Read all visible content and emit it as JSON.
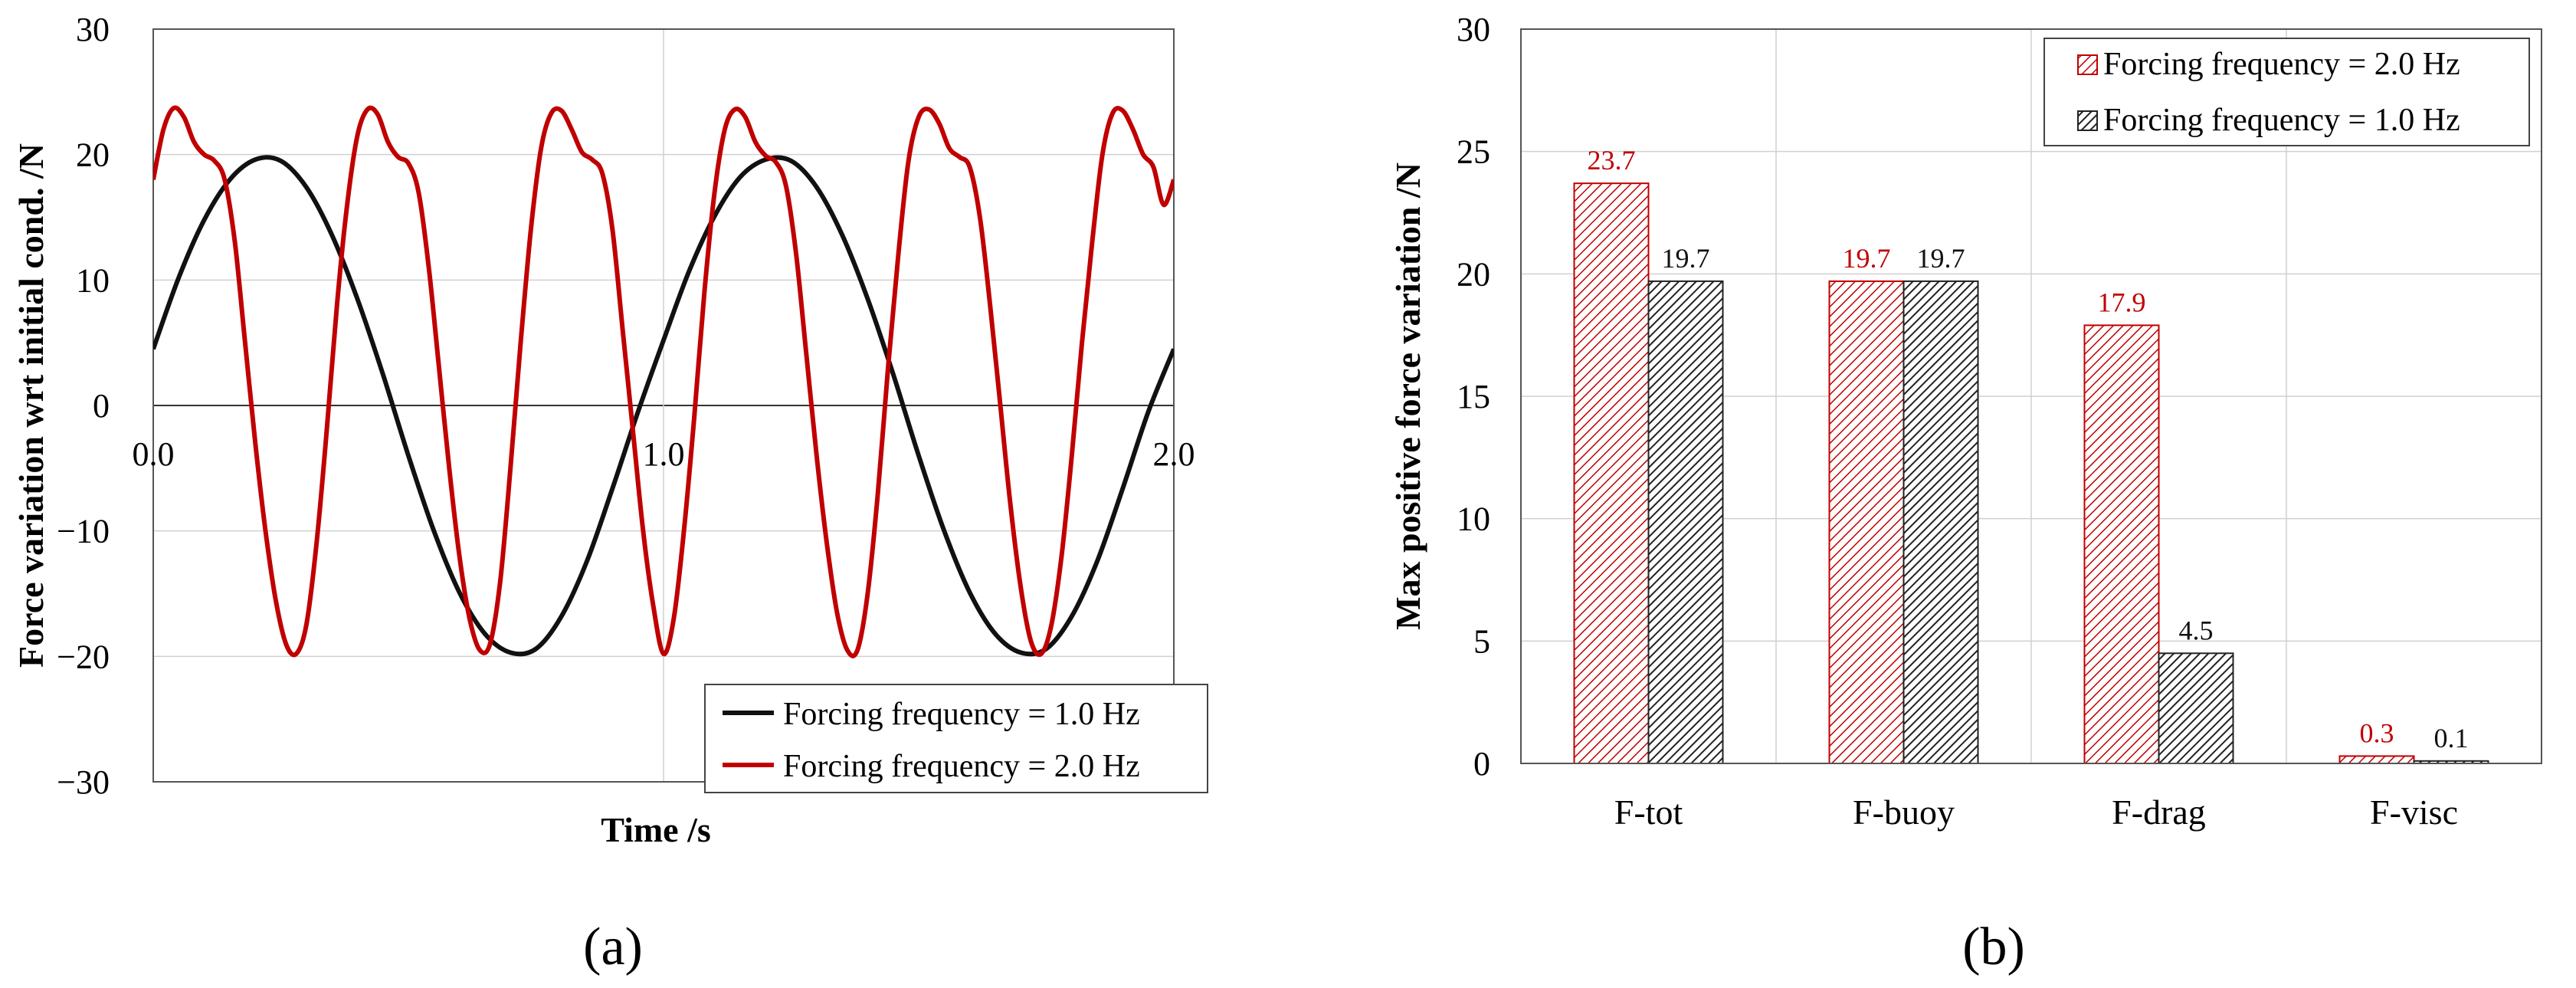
{
  "colors": {
    "series_1hz": "#111111",
    "series_2hz": "#C00000",
    "grid": "#d0d0d0",
    "axis": "#000000"
  },
  "chart_data": [
    {
      "panel": "(a)",
      "type": "line",
      "title": "",
      "xlabel": "Time /s",
      "ylabel": "Force variation wrt initial cond. /N",
      "xlim": [
        0,
        2
      ],
      "ylim": [
        -30,
        30
      ],
      "x_ticks": [
        "0.0",
        "1.0",
        "2.0"
      ],
      "y_ticks": [
        "30",
        "20",
        "10",
        "0",
        "−10",
        "−20",
        "−30"
      ],
      "legend_position": "bottom-right",
      "series": [
        {
          "name": "Forcing frequency = 1.0 Hz",
          "color": "#111111",
          "x": [
            0.0,
            0.05,
            0.1,
            0.15,
            0.2,
            0.25,
            0.3,
            0.35,
            0.4,
            0.45,
            0.5,
            0.55,
            0.6,
            0.65,
            0.7,
            0.75,
            0.8,
            0.85,
            0.9,
            0.95,
            1.0,
            1.05,
            1.1,
            1.15,
            1.2,
            1.25,
            1.3,
            1.35,
            1.4,
            1.45,
            1.5,
            1.55,
            1.6,
            1.65,
            1.7,
            1.75,
            1.8,
            1.85,
            1.9,
            1.95,
            2.0
          ],
          "y": [
            4.5,
            10.2,
            14.8,
            18.0,
            19.6,
            19.5,
            17.4,
            13.6,
            8.5,
            2.5,
            -4.0,
            -10.0,
            -14.9,
            -18.2,
            -19.7,
            -19.4,
            -16.8,
            -12.4,
            -6.6,
            -0.5,
            5.2,
            10.7,
            15.1,
            18.2,
            19.6,
            19.5,
            17.4,
            13.6,
            8.5,
            2.5,
            -4.0,
            -10.0,
            -14.9,
            -18.2,
            -19.7,
            -19.4,
            -16.8,
            -12.4,
            -6.6,
            -0.5,
            4.5
          ]
        },
        {
          "name": "Forcing frequency = 2.0 Hz",
          "color": "#C00000",
          "x": [
            0.0,
            0.02,
            0.04,
            0.06,
            0.08,
            0.1,
            0.12,
            0.14,
            0.16,
            0.18,
            0.2,
            0.22,
            0.24,
            0.26,
            0.28,
            0.3,
            0.32,
            0.34,
            0.36,
            0.38,
            0.4,
            0.42,
            0.44,
            0.46,
            0.48,
            0.5,
            0.52,
            0.54,
            0.56,
            0.58,
            0.6,
            0.62,
            0.64,
            0.66,
            0.68,
            0.7,
            0.72,
            0.74,
            0.76,
            0.78,
            0.8,
            0.82,
            0.84,
            0.86,
            0.88,
            0.9,
            0.92,
            0.94,
            0.96,
            0.98,
            1.0,
            1.02,
            1.04,
            1.06,
            1.08,
            1.1,
            1.12,
            1.14,
            1.16,
            1.18,
            1.2,
            1.22,
            1.24,
            1.26,
            1.28,
            1.3,
            1.32,
            1.34,
            1.36,
            1.38,
            1.4,
            1.42,
            1.44,
            1.46,
            1.48,
            1.5,
            1.52,
            1.54,
            1.56,
            1.58,
            1.6,
            1.62,
            1.64,
            1.66,
            1.68,
            1.7,
            1.72,
            1.74,
            1.76,
            1.78,
            1.8,
            1.82,
            1.84,
            1.86,
            1.88,
            1.9,
            1.92,
            1.94,
            1.96,
            1.98,
            2.0
          ],
          "y": [
            18.0,
            22.0,
            23.7,
            23.0,
            21.0,
            20.0,
            19.5,
            18.0,
            13.0,
            5.0,
            -3.0,
            -10.0,
            -15.5,
            -19.0,
            -19.8,
            -17.5,
            -11.0,
            -2.0,
            8.0,
            16.0,
            21.5,
            23.6,
            23.2,
            21.0,
            19.8,
            19.3,
            17.0,
            11.0,
            3.0,
            -5.0,
            -12.0,
            -17.0,
            -19.5,
            -19.0,
            -14.0,
            -5.0,
            5.0,
            14.0,
            20.5,
            23.3,
            23.5,
            22.0,
            20.2,
            19.6,
            18.5,
            14.0,
            6.0,
            -2.0,
            -10.0,
            -16.0,
            -19.8,
            -17.0,
            -10.0,
            -1.0,
            9.0,
            17.0,
            22.0,
            23.6,
            23.0,
            21.0,
            19.9,
            19.4,
            17.5,
            12.0,
            4.0,
            -4.0,
            -11.0,
            -16.5,
            -19.5,
            -19.5,
            -15.0,
            -7.0,
            3.0,
            12.0,
            19.5,
            23.0,
            23.6,
            22.5,
            20.5,
            19.8,
            19.0,
            15.0,
            8.0,
            0.0,
            -8.0,
            -14.5,
            -18.8,
            -19.8,
            -17.5,
            -12.0,
            -4.0,
            5.0,
            13.0,
            20.0,
            23.3,
            23.5,
            22.0,
            20.0,
            19.0,
            16.0,
            18.0
          ]
        }
      ]
    },
    {
      "panel": "(b)",
      "type": "bar",
      "title": "",
      "xlabel": "",
      "ylabel": "Max positive force variation  /N",
      "ylim": [
        0,
        30
      ],
      "y_ticks": [
        "0",
        "5",
        "10",
        "15",
        "20",
        "25",
        "30"
      ],
      "categories": [
        "F-tot",
        "F-buoy",
        "F-drag",
        "F-visc"
      ],
      "legend_position": "top-right",
      "series": [
        {
          "name": "Forcing frequency = 2.0 Hz",
          "color": "#C00000",
          "values": [
            23.7,
            19.7,
            17.9,
            0.3
          ],
          "labels": [
            "23.7",
            "19.7",
            "17.9",
            "0.3"
          ]
        },
        {
          "name": "Forcing frequency = 1.0 Hz",
          "color": "#111111",
          "values": [
            19.7,
            19.7,
            4.5,
            0.1
          ],
          "labels": [
            "19.7",
            "19.7",
            "4.5",
            "0.1"
          ]
        }
      ]
    }
  ]
}
